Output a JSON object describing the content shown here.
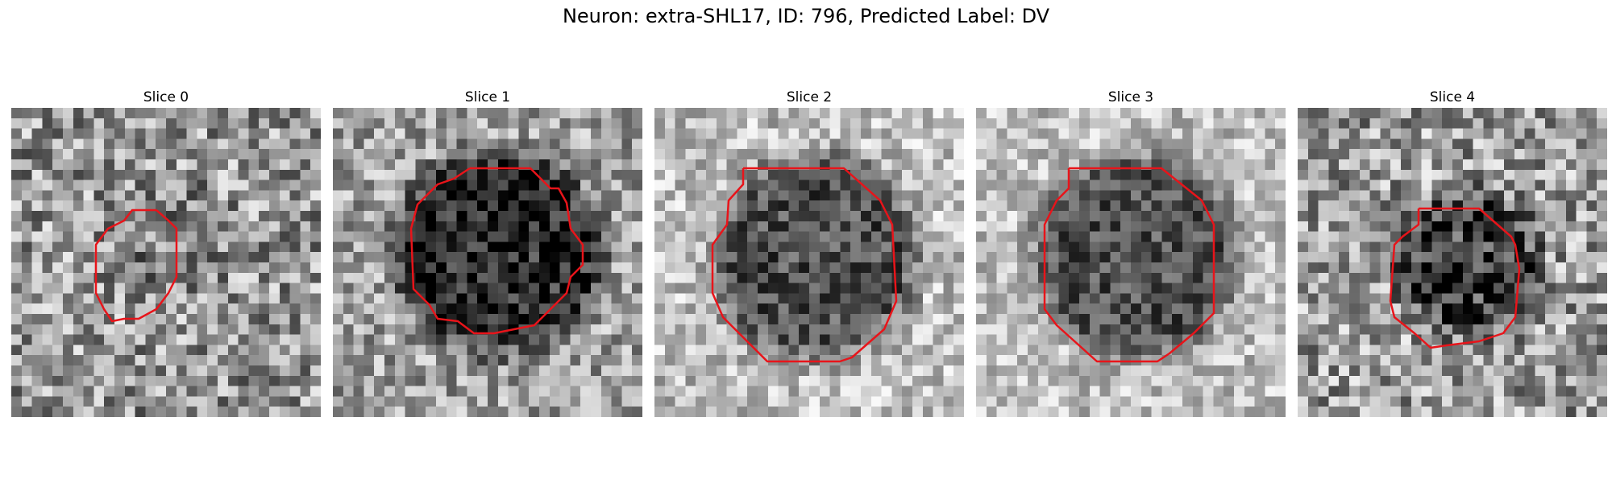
{
  "figure": {
    "title": "Neuron: extra-SHL17, ID: 796, Predicted Label: DV"
  },
  "colors": {
    "contour": "#e8141a"
  },
  "slices": [
    {
      "title": "Slice 0"
    },
    {
      "title": "Slice 1"
    },
    {
      "title": "Slice 2"
    },
    {
      "title": "Slice 3"
    },
    {
      "title": "Slice 4"
    }
  ]
}
